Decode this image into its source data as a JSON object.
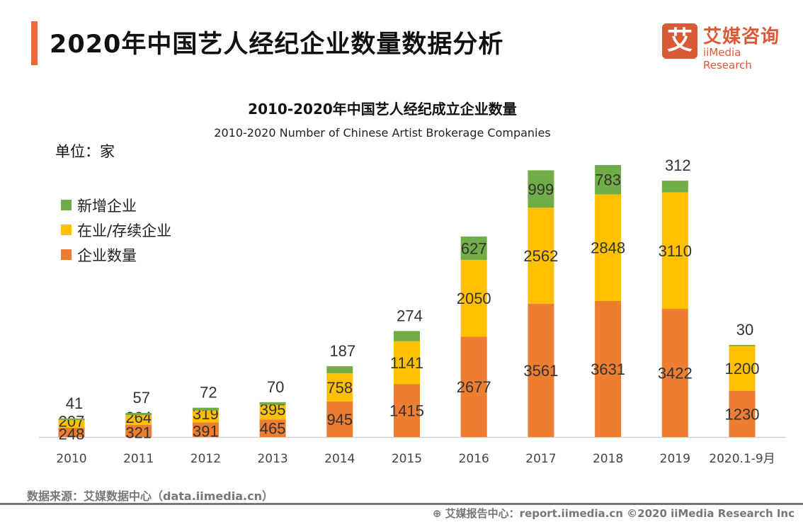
{
  "header": {
    "title": "2020年中国艺人经纪企业数量数据分析"
  },
  "logo": {
    "mark": "艾",
    "cn": "艾媒咨询",
    "en": "iiMedia Research"
  },
  "unit": "单位：家",
  "source": "数据来源：艾媒数据中心（data.iimedia.cn）",
  "footer": {
    "text": "艾媒报告中心：report.iimedia.cn    ©2020  iiMedia Research  Inc",
    "icon": "globe-cursor-icon"
  },
  "chart_data": {
    "type": "bar",
    "stacked": true,
    "title": "2010-2020年中国艺人经纪成立企业数量",
    "subtitle": "2010-2020 Number of Chinese Artist Brokerage Companies",
    "categories": [
      "2010",
      "2011",
      "2012",
      "2013",
      "2014",
      "2015",
      "2016",
      "2017",
      "2018",
      "2019",
      "2020.1-9月"
    ],
    "legend_position": "left",
    "grid": false,
    "series": [
      {
        "name": "企业数量",
        "color": "#ED7D31",
        "values": [
          248,
          321,
          391,
          465,
          945,
          1415,
          2677,
          3561,
          3631,
          3422,
          1230
        ]
      },
      {
        "name": "在业/存续企业",
        "color": "#FFC000",
        "values": [
          207,
          264,
          319,
          395,
          758,
          1141,
          2050,
          2562,
          2848,
          3110,
          1200
        ]
      },
      {
        "name": "新增企业",
        "color": "#70AD47",
        "values": [
          41,
          57,
          72,
          70,
          187,
          274,
          627,
          999,
          783,
          312,
          30
        ]
      }
    ],
    "legend_order": [
      2,
      1,
      0
    ]
  }
}
